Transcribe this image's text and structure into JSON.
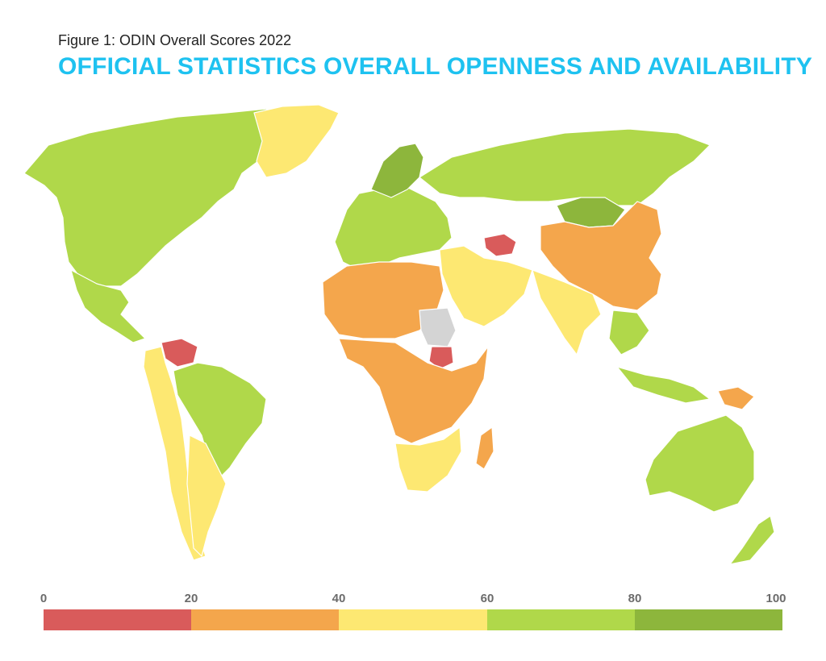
{
  "figure_label": "Figure 1: ODIN Overall Scores 2022",
  "title": "OFFICIAL STATISTICS OVERALL OPENNESS AND AVAILABILITY",
  "legend": {
    "ticks": [
      "0",
      "20",
      "40",
      "60",
      "80",
      "100"
    ],
    "bins": [
      {
        "range": [
          0,
          20
        ],
        "color": "#d95b5b"
      },
      {
        "range": [
          20,
          40
        ],
        "color": "#f4a64c"
      },
      {
        "range": [
          40,
          60
        ],
        "color": "#fde872"
      },
      {
        "range": [
          60,
          80
        ],
        "color": "#b0d84a"
      },
      {
        "range": [
          80,
          100
        ],
        "color": "#8db63c"
      }
    ]
  },
  "colors": {
    "no_data": "#d4d4d4",
    "border": "#ffffff",
    "title": "#1ec2f0"
  },
  "regions": [
    {
      "name": "North America",
      "color": "#b0d84a"
    },
    {
      "name": "Greenland",
      "color": "#fde872"
    },
    {
      "name": "Mexico & Central America",
      "color": "#b0d84a"
    },
    {
      "name": "Venezuela",
      "color": "#d95b5b"
    },
    {
      "name": "Andean South America",
      "color": "#fde872"
    },
    {
      "name": "Brazil",
      "color": "#b0d84a"
    },
    {
      "name": "Southern Cone",
      "color": "#fde872"
    },
    {
      "name": "Western Europe",
      "color": "#b0d84a"
    },
    {
      "name": "Nordics",
      "color": "#8db63c"
    },
    {
      "name": "Russia",
      "color": "#b0d84a"
    },
    {
      "name": "Mongolia",
      "color": "#8db63c"
    },
    {
      "name": "China",
      "color": "#f4a64c"
    },
    {
      "name": "Turkmenistan",
      "color": "#d95b5b"
    },
    {
      "name": "Middle East",
      "color": "#fde872"
    },
    {
      "name": "South Asia",
      "color": "#fde872"
    },
    {
      "name": "Southeast Asia",
      "color": "#b0d84a"
    },
    {
      "name": "North Africa",
      "color": "#f4a64c"
    },
    {
      "name": "Sudan",
      "color": "#d4d4d4"
    },
    {
      "name": "South Sudan",
      "color": "#d95b5b"
    },
    {
      "name": "Central Africa",
      "color": "#f4a64c"
    },
    {
      "name": "Southern Africa",
      "color": "#fde872"
    },
    {
      "name": "Madagascar",
      "color": "#f4a64c"
    },
    {
      "name": "Australia",
      "color": "#b0d84a"
    },
    {
      "name": "New Zealand",
      "color": "#b0d84a"
    },
    {
      "name": "Papua New Guinea",
      "color": "#f4a64c"
    }
  ]
}
